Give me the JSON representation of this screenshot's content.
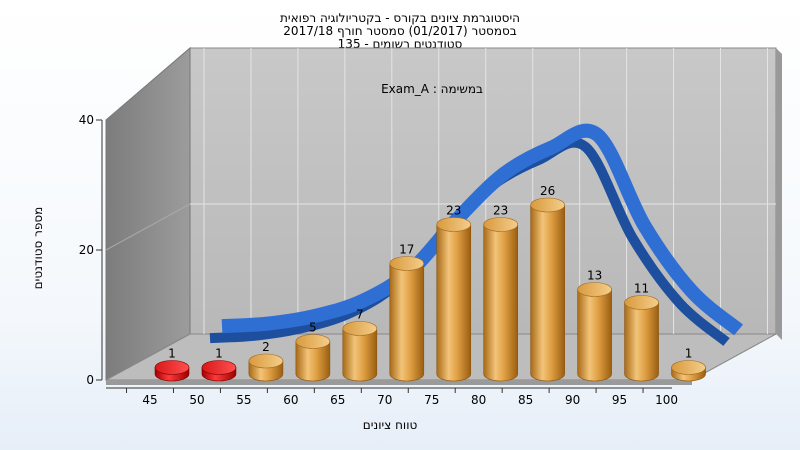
{
  "header": {
    "line1": "היסטוגרמת ציונים בקורס - בקטריולוגיה רפואית",
    "line2": "בסמסטר  (01/2017)  סמסטר חורף 2017/18",
    "line3": "סטודנטים רשומים - 135"
  },
  "chart_data": {
    "type": "bar",
    "title": "",
    "annotation": "Exam_A : במשימה",
    "xlabel": "טווח ציונים",
    "ylabel": "מספר סטודנטים",
    "categories": [
      "45",
      "50",
      "55",
      "60",
      "65",
      "70",
      "75",
      "80",
      "85",
      "90",
      "95",
      "100"
    ],
    "bars": [
      {
        "label": "45",
        "value": 1,
        "color": "#e01010"
      },
      {
        "label": "50",
        "value": 1,
        "color": "#e01010"
      },
      {
        "label": "55",
        "value": 2,
        "color": "#e8a040"
      },
      {
        "label": "60",
        "value": 5,
        "color": "#e8a040"
      },
      {
        "label": "65",
        "value": 7,
        "color": "#e8a040"
      },
      {
        "label": "70",
        "value": 17,
        "color": "#e8a040"
      },
      {
        "label": "75",
        "value": 23,
        "color": "#e8a040"
      },
      {
        "label": "80",
        "value": 23,
        "color": "#e8a040"
      },
      {
        "label": "85",
        "value": 26,
        "color": "#e8a040"
      },
      {
        "label": "90",
        "value": 13,
        "color": "#e8a040"
      },
      {
        "label": "95",
        "value": 11,
        "color": "#e8a040"
      },
      {
        "label": "100",
        "value": 1,
        "color": "#e8a040"
      }
    ],
    "curve": [
      0.6,
      1.0,
      2.2,
      4.5,
      9,
      17,
      24,
      28,
      30,
      16,
      6,
      0
    ],
    "y_ticks": [
      "0",
      "20",
      "40"
    ],
    "ylim": [
      0,
      40
    ],
    "grid": true,
    "colors": {
      "wall": "#c2c2c2",
      "side_wall": "#8f8f8f",
      "floor": "#b8b8b8",
      "curve": "#2f6fd4"
    }
  }
}
